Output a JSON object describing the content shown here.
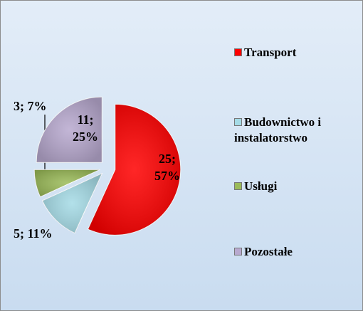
{
  "chart_data": {
    "type": "pie",
    "categories": [
      "Transport",
      "Budownictwo i instalatorstwo",
      "Usługi",
      "Pozostałe"
    ],
    "values": [
      25,
      5,
      3,
      11
    ],
    "value_labels": [
      "25; 57%",
      "5; 11%",
      "3; 7%",
      "11; 25%"
    ],
    "colors": [
      "#ff0000",
      "#a5dbe6",
      "#9bbb59",
      "#b8a9cf"
    ],
    "legend": "right"
  }
}
